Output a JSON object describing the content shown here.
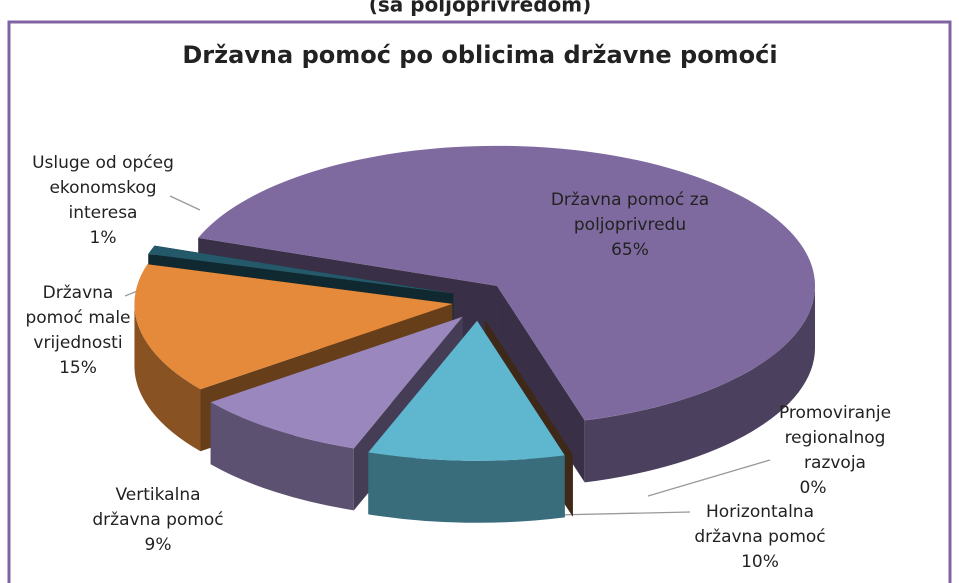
{
  "caption": "(sa poljoprivredom)",
  "chart_data": {
    "type": "pie3d",
    "title": "Državna pomoć po oblicima državne pomoći",
    "categories": [
      "Državna pomoć za poljoprivredu",
      "Promoviranje regionalnog razvoja",
      "Horizontalna državna pomoć",
      "Vertikalna državna pomoć",
      "Državna pomoć male vrijednosti",
      "Usluge od općeg ekonomskog interesa"
    ],
    "values": [
      65,
      0,
      10,
      9,
      15,
      1
    ],
    "value_labels": [
      "65%",
      "0%",
      "10%",
      "9%",
      "15%",
      "1%"
    ],
    "colors": [
      "#7e6a9f",
      "#8a5a36",
      "#5fb6cf",
      "#9a87bd",
      "#e5893a",
      "#24596a"
    ]
  }
}
